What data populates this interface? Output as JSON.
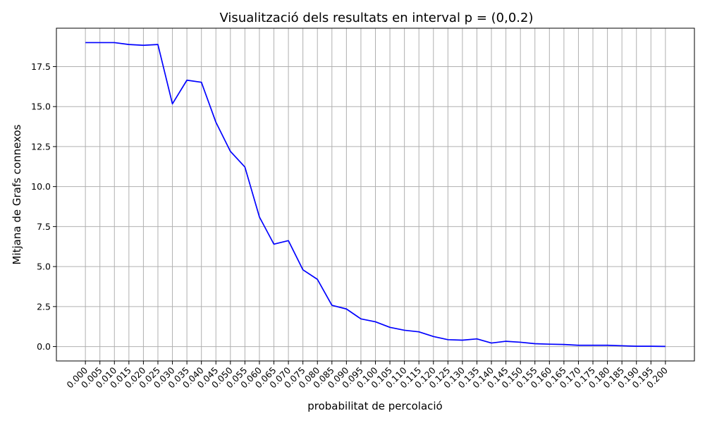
{
  "chart_data": {
    "type": "line",
    "title": "Visualització dels resultats en interval p = (0,0.2)",
    "xlabel": "probabilitat de percolació",
    "ylabel": "Mitjana de Grafs connexos",
    "x_tick_labels": [
      "0.000",
      "0.005",
      "0.010",
      "0.015",
      "0.020",
      "0.025",
      "0.030",
      "0.035",
      "0.040",
      "0.045",
      "0.050",
      "0.055",
      "0.060",
      "0.065",
      "0.070",
      "0.075",
      "0.080",
      "0.085",
      "0.090",
      "0.095",
      "0.100",
      "0.105",
      "0.110",
      "0.115",
      "0.120",
      "0.125",
      "0.130",
      "0.135",
      "0.140",
      "0.145",
      "0.150",
      "0.155",
      "0.160",
      "0.165",
      "0.170",
      "0.175",
      "0.180",
      "0.185",
      "0.190",
      "0.195",
      "0.200"
    ],
    "y_tick_labels": [
      "0.0",
      "2.5",
      "5.0",
      "7.5",
      "10.0",
      "12.5",
      "15.0",
      "17.5"
    ],
    "y_ticks": [
      0,
      2.5,
      5,
      7.5,
      10,
      12.5,
      15,
      17.5
    ],
    "xlim": [
      -0.01,
      0.21
    ],
    "ylim": [
      -0.9,
      19.9
    ],
    "grid": true,
    "series": [
      {
        "color": "#0000ff",
        "x": [
          0.0,
          0.005,
          0.01,
          0.015,
          0.02,
          0.025,
          0.03,
          0.035,
          0.04,
          0.045,
          0.05,
          0.055,
          0.06,
          0.065,
          0.07,
          0.075,
          0.08,
          0.085,
          0.09,
          0.095,
          0.1,
          0.105,
          0.11,
          0.115,
          0.12,
          0.125,
          0.13,
          0.135,
          0.14,
          0.145,
          0.15,
          0.155,
          0.16,
          0.165,
          0.17,
          0.175,
          0.18,
          0.185,
          0.19,
          0.195,
          0.2
        ],
        "y": [
          19.0,
          19.0,
          19.0,
          18.88,
          18.83,
          18.88,
          15.17,
          16.65,
          16.52,
          14.02,
          12.2,
          11.22,
          8.1,
          6.4,
          6.62,
          4.8,
          4.2,
          2.58,
          2.35,
          1.73,
          1.55,
          1.2,
          1.02,
          0.92,
          0.63,
          0.43,
          0.4,
          0.48,
          0.22,
          0.33,
          0.27,
          0.18,
          0.15,
          0.13,
          0.08,
          0.08,
          0.08,
          0.05,
          0.02,
          0.02,
          0.01
        ]
      }
    ]
  }
}
